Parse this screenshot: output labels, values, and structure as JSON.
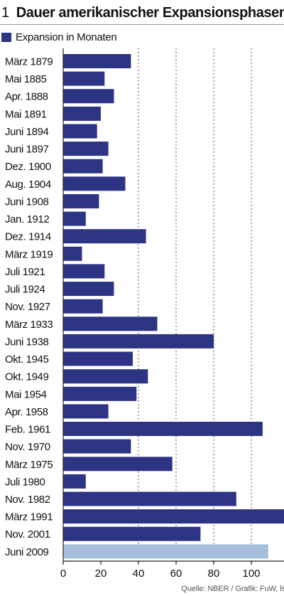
{
  "header": {
    "number": "1",
    "title": "Dauer amerikanischer Expansionsphasen"
  },
  "source": "Quelle: NBER / Grafik: FuW, ls",
  "chart_data": {
    "type": "bar",
    "orientation": "horizontal",
    "title": "Dauer amerikanischer Expansionsphasen",
    "xlabel": "",
    "ylabel": "",
    "xlim": [
      0,
      118
    ],
    "xticks": [
      0,
      20,
      40,
      60,
      80,
      100
    ],
    "grid": "vertical dotted at 40, 60, 80, 100",
    "legend_placement": "top-left",
    "colors": {
      "bar": "#2d3484",
      "highlight": "#a4bedc"
    },
    "categories": [
      "März 1879",
      "Mai 1885",
      "Apr. 1888",
      "Mai 1891",
      "Juni 1894",
      "Juni 1897",
      "Dez. 1900",
      "Aug. 1904",
      "Juni 1908",
      "Jan. 1912",
      "Dez. 1914",
      "März 1919",
      "Juli 1921",
      "Juli 1924",
      "Nov. 1927",
      "März 1933",
      "Juni 1938",
      "Okt. 1945",
      "Okt. 1949",
      "Mai 1954",
      "Apr. 1958",
      "Feb. 1961",
      "Nov. 1970",
      "März 1975",
      "Juli 1980",
      "Nov. 1982",
      "März 1991",
      "Nov. 2001",
      "Juni 2009"
    ],
    "series": [
      {
        "name": "Expansion in Monaten",
        "values": [
          36,
          22,
          27,
          20,
          18,
          24,
          21,
          33,
          19,
          12,
          44,
          10,
          22,
          27,
          21,
          50,
          80,
          37,
          45,
          39,
          24,
          106,
          36,
          58,
          12,
          92,
          120,
          73,
          109
        ]
      }
    ],
    "highlight_category": "Juni 2009"
  }
}
